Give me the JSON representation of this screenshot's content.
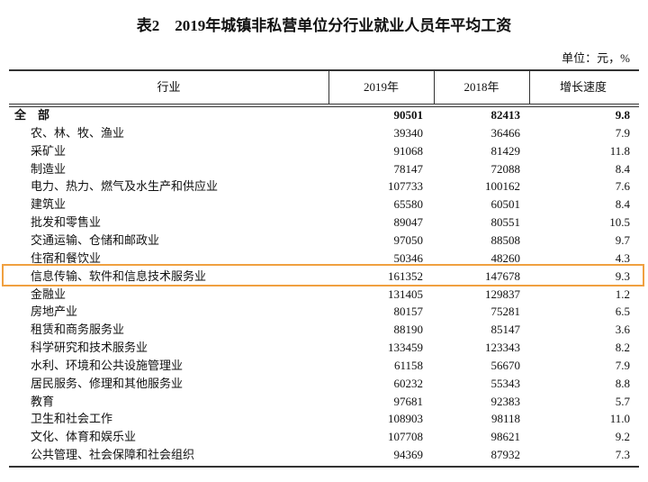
{
  "header": {
    "title": "表2　2019年城镇非私营单位分行业就业人员年平均工资",
    "unit": "单位：元，%"
  },
  "table": {
    "columns": [
      "行业",
      "2019年",
      "2018年",
      "增长速度"
    ],
    "rows": [
      [
        "全　部",
        "90501",
        "82413",
        "9.8"
      ],
      [
        "农、林、牧、渔业",
        "39340",
        "36466",
        "7.9"
      ],
      [
        "采矿业",
        "91068",
        "81429",
        "11.8"
      ],
      [
        "制造业",
        "78147",
        "72088",
        "8.4"
      ],
      [
        "电力、热力、燃气及水生产和供应业",
        "107733",
        "100162",
        "7.6"
      ],
      [
        "建筑业",
        "65580",
        "60501",
        "8.4"
      ],
      [
        "批发和零售业",
        "89047",
        "80551",
        "10.5"
      ],
      [
        "交通运输、仓储和邮政业",
        "97050",
        "88508",
        "9.7"
      ],
      [
        "住宿和餐饮业",
        "50346",
        "48260",
        "4.3"
      ],
      [
        "信息传输、软件和信息技术服务业",
        "161352",
        "147678",
        "9.3"
      ],
      [
        "金融业",
        "131405",
        "129837",
        "1.2"
      ],
      [
        "房地产业",
        "80157",
        "75281",
        "6.5"
      ],
      [
        "租赁和商务服务业",
        "88190",
        "85147",
        "3.6"
      ],
      [
        "科学研究和技术服务业",
        "133459",
        "123343",
        "8.2"
      ],
      [
        "水利、环境和公共设施管理业",
        "61158",
        "56670",
        "7.9"
      ],
      [
        "居民服务、修理和其他服务业",
        "60232",
        "55343",
        "8.8"
      ],
      [
        "教育",
        "97681",
        "92383",
        "5.7"
      ],
      [
        "卫生和社会工作",
        "108903",
        "98118",
        "11.0"
      ],
      [
        "文化、体育和娱乐业",
        "107708",
        "98621",
        "9.2"
      ],
      [
        "公共管理、社会保障和社会组织",
        "94369",
        "87932",
        "7.3"
      ]
    ]
  }
}
